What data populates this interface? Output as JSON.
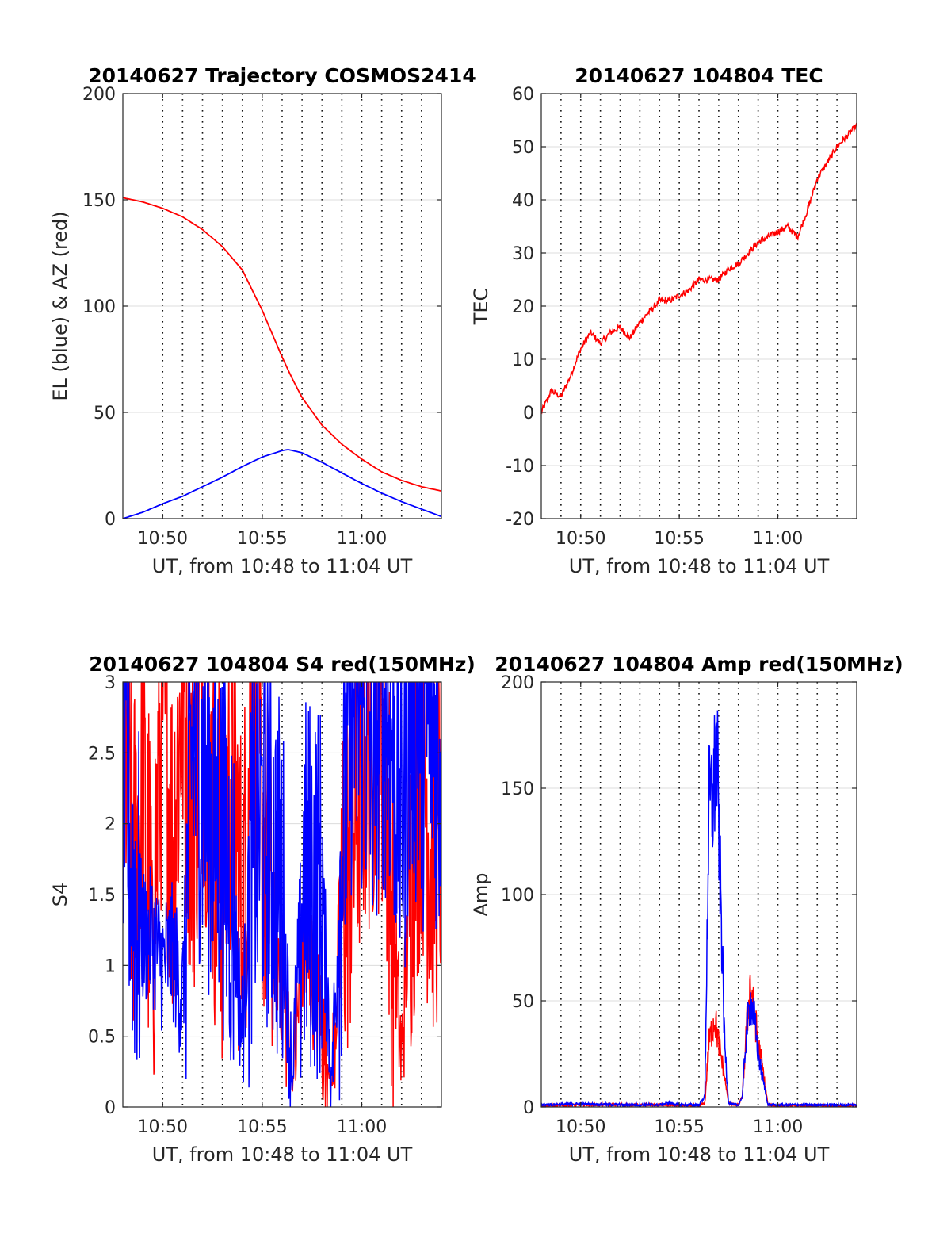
{
  "chart_data": [
    {
      "type": "line",
      "title": "20140627 Trajectory COSMOS2414",
      "xlabel": "UT, from 10:48 to 11:04 UT",
      "ylabel": "EL (blue) & AZ (red)",
      "xlim": [
        0,
        16
      ],
      "ylim": [
        0,
        200
      ],
      "xticks": [
        2,
        7,
        12
      ],
      "xticklabels": [
        "10:50",
        "10:55",
        "11:00"
      ],
      "yticks": [
        0,
        50,
        100,
        150,
        200
      ],
      "yticklabels": [
        "0",
        "50",
        "100",
        "150",
        "200"
      ],
      "vertical_dotted_lines": [
        2,
        3,
        4,
        5,
        6,
        7,
        8,
        9,
        10,
        11,
        12,
        13,
        14,
        15
      ],
      "series": [
        {
          "color": "#ff0000",
          "x": [
            0,
            1,
            2,
            3,
            4,
            5,
            6,
            7,
            7.5,
            8,
            8.5,
            9,
            10,
            11,
            12,
            13,
            14,
            15,
            16
          ],
          "values": [
            151,
            149,
            146,
            142,
            136,
            128,
            117,
            98,
            87,
            76,
            66,
            57,
            44,
            35,
            28,
            22,
            18,
            15,
            13
          ]
        },
        {
          "color": "#0000ff",
          "x": [
            0,
            1,
            2,
            3,
            4,
            5,
            6,
            7,
            8,
            8.3,
            9,
            10,
            11,
            12,
            13,
            14,
            15,
            16
          ],
          "values": [
            0,
            3,
            7,
            10.5,
            15,
            19.5,
            24.5,
            29,
            32,
            32.5,
            31,
            26.5,
            21.5,
            16.5,
            12,
            8,
            4.5,
            1
          ]
        }
      ]
    },
    {
      "type": "line",
      "title": "20140627 104804 TEC",
      "xlabel": "UT, from 10:48 to 11:04 UT",
      "ylabel": "TEC",
      "xlim": [
        0,
        16
      ],
      "ylim": [
        -20,
        60
      ],
      "xticks": [
        2,
        7,
        12
      ],
      "xticklabels": [
        "10:50",
        "10:55",
        "11:00"
      ],
      "yticks": [
        -20,
        -10,
        0,
        10,
        20,
        30,
        40,
        50,
        60
      ],
      "yticklabels": [
        "-20",
        "-10",
        "0",
        "10",
        "20",
        "30",
        "40",
        "50",
        "60"
      ],
      "vertical_dotted_lines": [
        1,
        2,
        3,
        4,
        5,
        6,
        7,
        8,
        9,
        10,
        11,
        12,
        13,
        14,
        15
      ],
      "series": [
        {
          "color": "#ff0000",
          "x": [
            0,
            0.5,
            1,
            1.5,
            2,
            2.5,
            3,
            3.5,
            4,
            4.5,
            5,
            5.5,
            6,
            6.5,
            7,
            7.5,
            8,
            8.5,
            9,
            9.5,
            10,
            10.5,
            11,
            11.5,
            12,
            12.5,
            13,
            13.5,
            14,
            14.5,
            15,
            15.5,
            16
          ],
          "values": [
            0,
            4,
            3,
            7,
            12,
            15,
            13,
            15,
            16,
            14,
            17,
            19,
            21,
            21,
            22,
            23,
            25,
            25,
            25,
            27,
            28,
            30,
            32,
            33,
            34,
            35,
            33,
            38,
            44,
            47,
            50,
            52,
            54
          ]
        }
      ]
    },
    {
      "type": "line",
      "title": "20140627 104804 S4 red(150MHz)",
      "xlabel": "UT, from 10:48 to 11:04 UT",
      "ylabel": "S4",
      "xlim": [
        0,
        16
      ],
      "ylim": [
        0,
        3
      ],
      "xticks": [
        2,
        7,
        12
      ],
      "xticklabels": [
        "10:50",
        "10:55",
        "11:00"
      ],
      "yticks": [
        0,
        0.5,
        1,
        1.5,
        2,
        2.5,
        3
      ],
      "yticklabels": [
        "0",
        "0.5",
        "1",
        "1.5",
        "2",
        "2.5",
        "3"
      ],
      "vertical_dotted_lines": [
        2,
        3,
        4,
        5,
        6,
        7,
        8,
        9,
        10,
        11,
        12,
        13,
        14,
        15
      ],
      "series": [
        {
          "color": "#ff0000",
          "x": [
            0,
            0.5,
            1,
            1.5,
            2,
            2.5,
            3,
            3.5,
            4,
            4.5,
            5,
            5.5,
            6,
            6.5,
            7,
            7.5,
            8,
            8.5,
            9,
            9.5,
            10,
            10.5,
            11,
            11.5,
            12,
            12.5,
            13,
            13.5,
            14,
            14.5,
            15,
            15.5,
            16
          ],
          "values": [
            3,
            1.6,
            2.2,
            1.2,
            3,
            1.8,
            3,
            2,
            3,
            2,
            1.6,
            2.6,
            1.2,
            3,
            2,
            1.3,
            0.9,
            0.12,
            1.0,
            0.95,
            0.5,
            0.15,
            1.5,
            1.8,
            2.5,
            2.6,
            2.8,
            1.5,
            0.3,
            1.8,
            2.5,
            1.8,
            2.0
          ]
        },
        {
          "color": "#0000ff",
          "x": [
            0,
            0.5,
            1,
            1.5,
            2,
            2.5,
            3,
            3.5,
            4,
            4.5,
            5,
            5.5,
            6,
            6.5,
            7,
            7.5,
            8,
            8.5,
            9,
            9.5,
            10,
            10.5,
            11,
            11.5,
            12,
            12.5,
            13,
            13.5,
            14,
            14.5,
            15,
            15.5,
            16
          ],
          "values": [
            2.5,
            1.6,
            1.2,
            1.2,
            1.0,
            1.1,
            0.75,
            2.6,
            2.3,
            2.1,
            1.9,
            1.5,
            0.5,
            1.9,
            2.0,
            1.8,
            1.5,
            0.12,
            1.5,
            1.6,
            1.5,
            0.2,
            1.8,
            2.9,
            2.8,
            2.5,
            2.9,
            2.7,
            2.0,
            2.9,
            2.6,
            2.8,
            2.4
          ]
        }
      ]
    },
    {
      "type": "line",
      "title": "20140627 104804 Amp red(150MHz)",
      "xlabel": "UT, from 10:48 to 11:04 UT",
      "ylabel": "Amp",
      "xlim": [
        0,
        16
      ],
      "ylim": [
        0,
        200
      ],
      "xticks": [
        2,
        7,
        12
      ],
      "xticklabels": [
        "10:50",
        "10:55",
        "11:00"
      ],
      "yticks": [
        0,
        50,
        100,
        150,
        200
      ],
      "yticklabels": [
        "0",
        "50",
        "100",
        "150",
        "200"
      ],
      "vertical_dotted_lines": [
        1,
        2,
        3,
        4,
        5,
        6,
        7,
        8,
        9,
        10,
        11,
        12,
        13,
        14,
        15
      ],
      "series": [
        {
          "color": "#ff0000",
          "x": [
            0,
            2,
            4,
            6,
            8,
            8.3,
            8.5,
            8.8,
            9.0,
            9.2,
            9.5,
            9.8,
            10.0,
            10.2,
            10.4,
            10.6,
            10.8,
            11.0,
            11.2,
            11.5,
            12,
            14,
            16
          ],
          "values": [
            0.5,
            1,
            1,
            1,
            0.5,
            2,
            30,
            42,
            30,
            20,
            2,
            1,
            1,
            5,
            35,
            58,
            45,
            30,
            20,
            1,
            0.5,
            0.5,
            0.5
          ]
        },
        {
          "color": "#0000ff",
          "x": [
            0,
            2,
            4,
            6,
            6.5,
            7,
            8,
            8.3,
            8.5,
            8.7,
            8.9,
            9.1,
            9.3,
            9.5,
            9.8,
            10.0,
            10.2,
            10.4,
            10.6,
            10.8,
            11.0,
            11.2,
            11.5,
            12,
            14,
            16
          ],
          "values": [
            1,
            1.5,
            1,
            1,
            2,
            1,
            1,
            5,
            140,
            145,
            168,
            100,
            30,
            2,
            1,
            1,
            5,
            35,
            50,
            42,
            25,
            15,
            1,
            1,
            1,
            1
          ]
        }
      ]
    }
  ]
}
